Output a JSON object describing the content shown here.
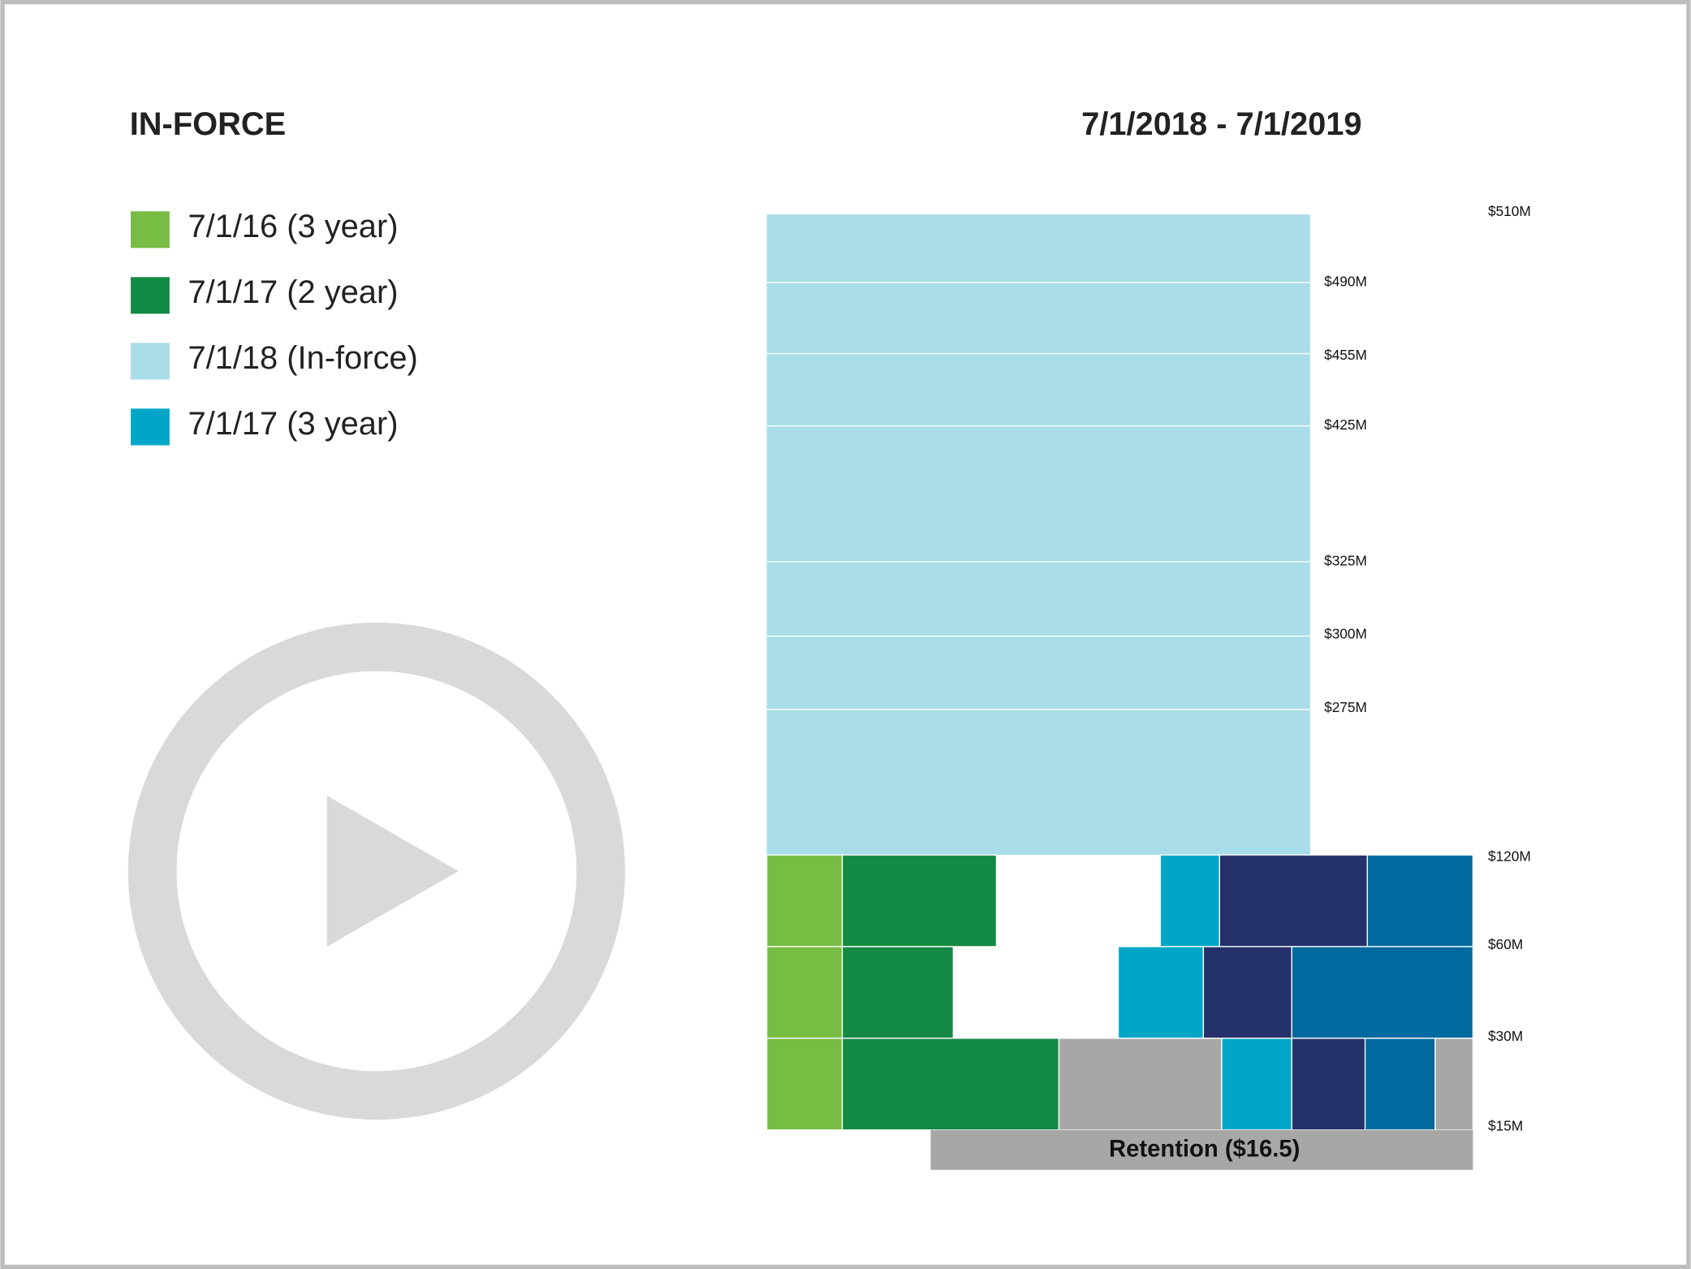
{
  "header": {
    "title": "IN-FORCE",
    "period": "7/1/2018 - 7/1/2019"
  },
  "legend": {
    "items": [
      {
        "label": "7/1/16 (3 year)"
      },
      {
        "label": "7/1/17 (2 year)"
      },
      {
        "label": "7/1/18 (In-force)"
      },
      {
        "label": "7/1/17 (3 year)"
      }
    ]
  },
  "tower": {
    "labels": [
      "$510M",
      "$490M",
      "$455M",
      "$425M",
      "$325M",
      "$300M",
      "$275M",
      "$120M",
      "$60M",
      "$30M",
      "$15M"
    ]
  },
  "retention": {
    "label": "Retention ($16.5)"
  }
}
